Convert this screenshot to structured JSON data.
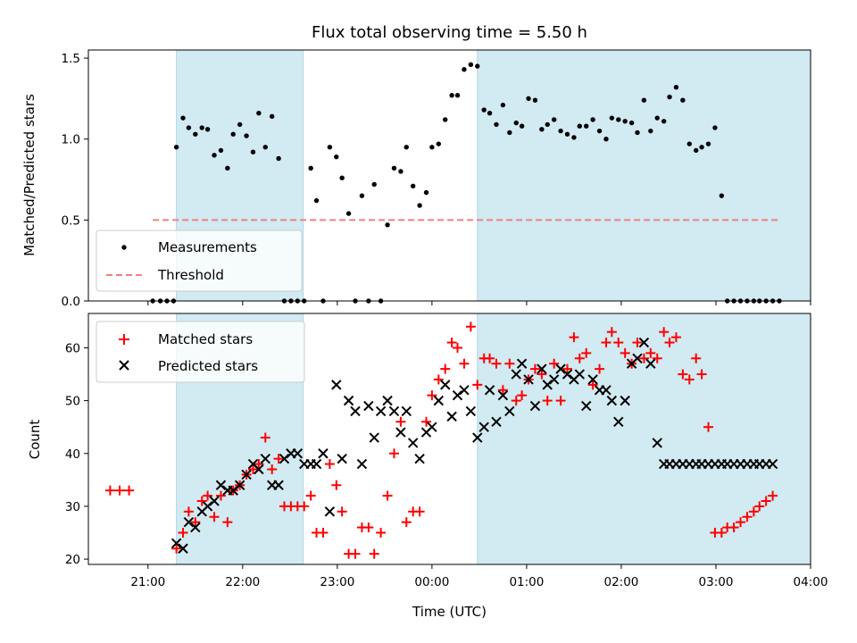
{
  "chart_data": [
    {
      "type": "scatter",
      "panel": "top",
      "title": "Flux total observing time = 5.50 h",
      "xlabel": "",
      "ylabel": "Matched/Predicted stars",
      "ylim": [
        0,
        1.55
      ],
      "yticks": [
        0.0,
        0.5,
        1.0,
        1.5
      ],
      "ytick_labels": [
        "0.0",
        "0.5",
        "1.0",
        "1.5"
      ],
      "xlim_hours": [
        -3.63,
        4.0
      ],
      "shaded_hour_intervals": [
        [
          -2.7,
          -1.36
        ],
        [
          0.48,
          4.75
        ]
      ],
      "shade_color": "#add8e6",
      "legend": {
        "placement": "lower-left",
        "entries": [
          {
            "label": "Measurements",
            "marker": "dot",
            "color": "#000000"
          },
          {
            "label": "Threshold",
            "marker": "dashed-line",
            "color": "#ff7f7f"
          }
        ]
      },
      "threshold": {
        "name": "Threshold",
        "y": 0.5,
        "x_start": -2.95,
        "x_end": 3.68,
        "color": "#f08080"
      },
      "series": [
        {
          "name": "Measurements",
          "color": "#000000",
          "x": [
            -2.95,
            -2.87,
            -2.8,
            -2.73,
            -2.7,
            -2.63,
            -2.57,
            -2.5,
            -2.43,
            -2.37,
            -2.3,
            -2.23,
            -2.16,
            -2.1,
            -2.03,
            -1.96,
            -1.89,
            -1.83,
            -1.76,
            -1.69,
            -1.62,
            -1.56,
            -1.49,
            -1.42,
            -1.35,
            -1.28,
            -1.22,
            -1.15,
            -1.08,
            -1.01,
            -0.95,
            -0.88,
            -0.81,
            -0.74,
            -0.67,
            -0.61,
            -0.54,
            -0.47,
            -0.4,
            -0.33,
            -0.27,
            -0.2,
            -0.13,
            -0.06,
            0.0,
            0.07,
            0.14,
            0.21,
            0.27,
            0.34,
            0.41,
            0.48,
            0.55,
            0.61,
            0.68,
            0.75,
            0.82,
            0.89,
            0.95,
            1.02,
            1.09,
            1.16,
            1.22,
            1.29,
            1.36,
            1.43,
            1.5,
            1.56,
            1.63,
            1.7,
            1.77,
            1.84,
            1.9,
            1.97,
            2.04,
            2.11,
            2.17,
            2.24,
            2.31,
            2.38,
            2.45,
            2.51,
            2.58,
            2.65,
            2.72,
            2.79,
            2.85,
            2.92,
            2.99,
            3.06,
            3.12,
            3.19,
            3.26,
            3.33,
            3.4,
            3.46,
            3.53,
            3.6,
            3.67
          ],
          "y": [
            0,
            0,
            0,
            0,
            0.95,
            1.13,
            1.07,
            1.03,
            1.07,
            1.06,
            0.9,
            0.93,
            0.82,
            1.03,
            1.09,
            1.02,
            0.92,
            1.16,
            0.95,
            1.14,
            0.88,
            0,
            0,
            0,
            0,
            0.82,
            0.62,
            0,
            0.95,
            0.89,
            0.76,
            0.54,
            0,
            0.65,
            0,
            0.72,
            0,
            0.47,
            0.82,
            0.8,
            0.95,
            0.71,
            0.59,
            0.67,
            0.95,
            0.97,
            1.12,
            1.27,
            1.27,
            1.43,
            1.46,
            1.45,
            1.18,
            1.16,
            1.09,
            1.21,
            1.04,
            1.1,
            1.08,
            1.25,
            1.24,
            1.06,
            1.09,
            1.12,
            1.05,
            1.03,
            1.01,
            1.08,
            1.08,
            1.12,
            1.05,
            1.0,
            1.13,
            1.12,
            1.11,
            1.1,
            1.04,
            1.24,
            1.05,
            1.13,
            1.11,
            1.26,
            1.32,
            1.24,
            0.97,
            0.93,
            0.95,
            0.97,
            1.07,
            0.65,
            0,
            0,
            0,
            0,
            0,
            0,
            0,
            0,
            0
          ]
        }
      ]
    },
    {
      "type": "scatter",
      "panel": "bottom",
      "title": "",
      "xlabel": "Time (UTC)",
      "ylabel": "Count",
      "ylim": [
        19,
        66.5
      ],
      "yticks": [
        20,
        30,
        40,
        50,
        60
      ],
      "ytick_labels": [
        "20",
        "30",
        "40",
        "50",
        "60"
      ],
      "xlim_hours": [
        -3.63,
        4.0
      ],
      "xticks_hours": [
        -3,
        -2,
        -1,
        0,
        1,
        2,
        3,
        4
      ],
      "xtick_labels": [
        "21:00",
        "22:00",
        "23:00",
        "00:00",
        "01:00",
        "02:00",
        "03:00",
        "04:00"
      ],
      "shaded_hour_intervals": [
        [
          -2.7,
          -1.36
        ],
        [
          0.48,
          4.75
        ]
      ],
      "shade_color": "#add8e6",
      "legend": {
        "placement": "top-left",
        "entries": [
          {
            "label": "Matched stars",
            "marker": "plus",
            "color": "#ff0000"
          },
          {
            "label": "Predicted stars",
            "marker": "x",
            "color": "#000000"
          }
        ]
      },
      "series": [
        {
          "name": "Matched stars",
          "marker": "plus",
          "color": "#ff0000",
          "x": [
            -3.4,
            -3.3,
            -3.2,
            -2.7,
            -2.63,
            -2.57,
            -2.5,
            -2.43,
            -2.37,
            -2.3,
            -2.23,
            -2.16,
            -2.1,
            -2.03,
            -1.96,
            -1.89,
            -1.83,
            -1.76,
            -1.69,
            -1.62,
            -1.56,
            -1.49,
            -1.42,
            -1.35,
            -1.28,
            -1.22,
            -1.15,
            -1.08,
            -1.01,
            -0.95,
            -0.88,
            -0.81,
            -0.74,
            -0.67,
            -0.61,
            -0.54,
            -0.47,
            -0.4,
            -0.33,
            -0.27,
            -0.2,
            -0.13,
            -0.06,
            0.0,
            0.07,
            0.14,
            0.21,
            0.27,
            0.34,
            0.41,
            0.48,
            0.55,
            0.61,
            0.68,
            0.75,
            0.82,
            0.89,
            0.95,
            1.02,
            1.09,
            1.16,
            1.22,
            1.29,
            1.36,
            1.43,
            1.5,
            1.56,
            1.63,
            1.7,
            1.77,
            1.84,
            1.9,
            1.97,
            2.04,
            2.11,
            2.17,
            2.24,
            2.31,
            2.38,
            2.45,
            2.51,
            2.58,
            2.65,
            2.72,
            2.79,
            2.85,
            2.92,
            2.99,
            3.06,
            3.12,
            3.19,
            3.26,
            3.33,
            3.4,
            3.46,
            3.53,
            3.6
          ],
          "y": [
            33,
            33,
            33,
            22,
            25,
            29,
            27,
            31,
            32,
            28,
            32,
            27,
            33,
            34,
            36,
            37,
            38,
            43,
            37,
            39,
            30,
            30,
            30,
            30,
            32,
            25,
            25,
            38,
            34,
            29,
            21,
            21,
            26,
            26,
            21,
            25,
            32,
            40,
            46,
            27,
            29,
            29,
            46,
            51,
            54,
            56,
            61,
            60,
            57,
            64,
            53,
            58,
            58,
            57,
            52,
            57,
            50,
            51,
            54,
            56,
            55,
            50,
            57,
            50,
            56,
            62,
            58,
            59,
            53,
            56,
            61,
            63,
            61,
            59,
            57,
            61,
            58,
            59,
            58,
            63,
            61,
            62,
            55,
            54,
            58,
            55,
            45,
            25,
            25,
            26,
            26,
            27,
            28,
            29,
            30,
            31,
            32
          ],
          "points_note": ""
        },
        {
          "name": "Predicted stars",
          "marker": "x",
          "color": "#000000",
          "x": [
            -2.7,
            -2.63,
            -2.57,
            -2.5,
            -2.43,
            -2.37,
            -2.3,
            -2.23,
            -2.16,
            -2.1,
            -2.03,
            -1.96,
            -1.89,
            -1.83,
            -1.76,
            -1.69,
            -1.62,
            -1.56,
            -1.49,
            -1.42,
            -1.35,
            -1.28,
            -1.22,
            -1.15,
            -1.08,
            -1.01,
            -0.95,
            -0.88,
            -0.81,
            -0.74,
            -0.67,
            -0.61,
            -0.54,
            -0.47,
            -0.4,
            -0.33,
            -0.27,
            -0.2,
            -0.13,
            -0.06,
            0.0,
            0.07,
            0.14,
            0.21,
            0.27,
            0.34,
            0.41,
            0.48,
            0.55,
            0.61,
            0.68,
            0.75,
            0.82,
            0.89,
            0.95,
            1.02,
            1.09,
            1.16,
            1.22,
            1.29,
            1.36,
            1.43,
            1.5,
            1.56,
            1.63,
            1.7,
            1.77,
            1.84,
            1.9,
            1.97,
            2.04,
            2.11,
            2.17,
            2.24,
            2.31,
            2.38,
            2.45,
            2.51,
            2.58,
            2.65,
            2.72,
            2.79,
            2.85,
            2.92,
            2.99,
            3.06,
            3.12,
            3.19,
            3.26,
            3.33,
            3.4,
            3.46,
            3.53,
            3.6
          ],
          "y": [
            23,
            22,
            27,
            26,
            29,
            30,
            31,
            34,
            33,
            33,
            34,
            36,
            38,
            37,
            39,
            34,
            34,
            39,
            40,
            40,
            38,
            38,
            38,
            40,
            29,
            53,
            39,
            50,
            48,
            38,
            49,
            43,
            48,
            50,
            48,
            44,
            48,
            42,
            39,
            44,
            45,
            50,
            53,
            47,
            51,
            52,
            48,
            43,
            45,
            52,
            46,
            51,
            48,
            55,
            57,
            54,
            49,
            56,
            53,
            54,
            56,
            55,
            54,
            55,
            49,
            54,
            52,
            52,
            50,
            46,
            50,
            57,
            58,
            61,
            57,
            42,
            38,
            38,
            38,
            38,
            38,
            38,
            38,
            38,
            38,
            38,
            38,
            38,
            38,
            38,
            38,
            38,
            38,
            38
          ]
        }
      ]
    }
  ]
}
